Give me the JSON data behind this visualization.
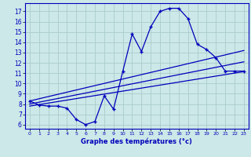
{
  "bg_color": "#cce8e8",
  "grid_color": "#aacccc",
  "line_color": "#0000bb",
  "xlabel": "Graphe des températures (°c)",
  "ylabel_ticks": [
    6,
    7,
    8,
    9,
    10,
    11,
    12,
    13,
    14,
    15,
    16,
    17
  ],
  "xlim": [
    -0.5,
    23.5
  ],
  "ylim": [
    5.6,
    17.8
  ],
  "main_curve_x": [
    0,
    1,
    2,
    3,
    4,
    5,
    6,
    7,
    8,
    9,
    10,
    11,
    12,
    13,
    14,
    15,
    16,
    17,
    18,
    19,
    20,
    21,
    22,
    23
  ],
  "main_curve_y": [
    8.3,
    7.9,
    7.8,
    7.8,
    7.6,
    6.5,
    6.0,
    6.3,
    8.8,
    7.5,
    11.2,
    14.8,
    13.1,
    15.5,
    17.0,
    17.3,
    17.3,
    16.3,
    13.8,
    13.3,
    12.5,
    11.2,
    11.2,
    11.2
  ],
  "line1_x": [
    0,
    23
  ],
  "line1_y": [
    8.3,
    13.2
  ],
  "line2_x": [
    0,
    23
  ],
  "line2_y": [
    8.0,
    12.1
  ],
  "line3_x": [
    0,
    23
  ],
  "line3_y": [
    7.8,
    11.15
  ]
}
